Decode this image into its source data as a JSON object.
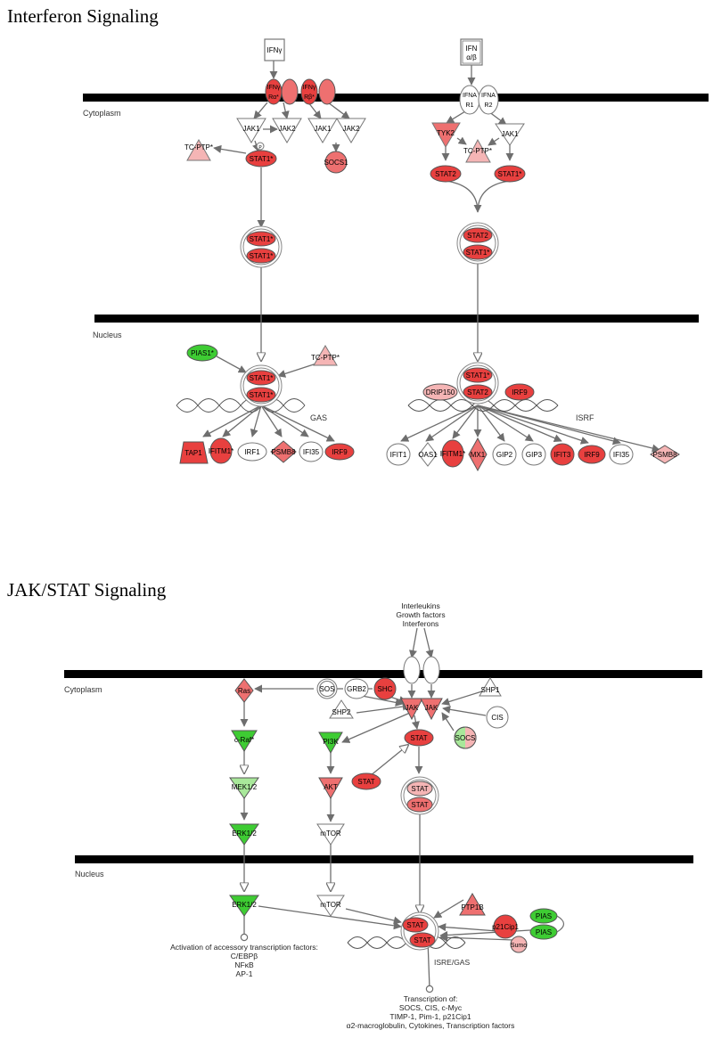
{
  "panel1": {
    "title": "Interferon Signaling",
    "cytoplasm": "Cytoplasm",
    "nucleus": "Nucleus",
    "gas": "GAS",
    "isrf": "ISRF",
    "ifng": "IFNγ",
    "ifnab_1": "IFN",
    "ifnab_2": "α/β",
    "ifngr_1": "IFNγ",
    "ifngr_2": "Rα*",
    "ifngr_3": "IFNγ",
    "ifngr_4": "Rβ*",
    "jak1_a": "JAK1",
    "jak2_a": "JAK2",
    "jak1_b": "JAK1",
    "jak2_b": "JAK2",
    "tcptp_a": "TC-PTP*",
    "stat1_a": "STAT1*",
    "socs1": "SOCS1",
    "p_a": "P",
    "ifnar1_1": "IFNA",
    "ifnar1_2": "R1",
    "ifnar2_1": "IFNA",
    "ifnar2_2": "R2",
    "tyk2": "TYK2",
    "tcptp_b": "TC-PTP*",
    "jak1_c": "JAK1",
    "stat2_a": "STAT2",
    "stat1_b": "STAT1*",
    "stat1_dim1": "STAT1*",
    "stat1_dim2": "STAT1*",
    "stat2_dim": "STAT2",
    "stat1_dim3": "STAT1*",
    "pias1": "PIAS1*",
    "tcptp_n": "TC-PTP*",
    "stat1_n1": "STAT1*",
    "stat1_n2": "STAT1*",
    "stat1_n3": "STAT1*",
    "stat2_n": "STAT2",
    "drip150": "DRIP150",
    "irf9_n": "IRF9",
    "targets_gas": [
      "TAP1",
      "IFITM1*",
      "IRF1",
      "PSMB8",
      "IFI35",
      "IRF9"
    ],
    "targets_isrf": [
      "IFIT1",
      "OAS1",
      "IFITM1*",
      "MX1",
      "GIP2",
      "GIP3",
      "IFIT3",
      "IRF9",
      "IFI35",
      "PSMB8"
    ]
  },
  "panel2": {
    "title": "JAK/STAT Signaling",
    "ligands": [
      "Interleukins",
      "Growth factors",
      "Interferons"
    ],
    "cytoplasm": "Cytoplasm",
    "nucleus": "Nucleus",
    "ras": "Ras",
    "sos": "SOS",
    "grb2": "GRB2",
    "shc": "SHC",
    "shp1": "SHP1",
    "shp2": "SHP2",
    "jak_a": "JAK",
    "jak_b": "JAK",
    "cis": "CIS",
    "socs": "SOCS",
    "craf": "c-Raf*",
    "pi3k": "PI3K",
    "stat_a": "STAT",
    "stat_b": "STAT",
    "stat_dim1": "STAT",
    "stat_dim2": "STAT",
    "mek": "MEK1/2",
    "akt": "AKT",
    "erk_a": "ERK1/2",
    "mtor_a": "mTOR",
    "erk_b": "ERK1/2",
    "mtor_b": "mTOR",
    "ptp1b": "PTP1B",
    "p21": "p21Cip1",
    "pias_a": "PIAS",
    "pias_b": "PIAS",
    "sumo": "Sumo",
    "stat_n1": "STAT",
    "stat_n2": "STAT",
    "isre_gas": "ISRE/GAS",
    "activation_lines": [
      "Activation of accessory transcription factors:",
      "C/EBPβ",
      "NFκB",
      "AP-1"
    ],
    "transcription_lines": [
      "Transcription of:",
      "SOCS, CIS, c-Myc",
      "TIMP-1, Pim-1, p21Cip1",
      "α2-macroglobulin, Cytokines, Transcription factors"
    ]
  },
  "colors": {
    "red_strong": "#e8403f",
    "red_mid": "#ee7070",
    "red_light": "#f5b5b5",
    "green_strong": "#3ecc33",
    "green_light": "#a8e89a",
    "white": "#ffffff",
    "edge": "#6e6e6e",
    "membrane": "#000000"
  }
}
